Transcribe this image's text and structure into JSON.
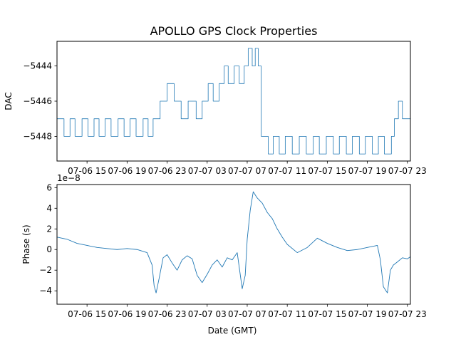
{
  "figure": {
    "title": "APOLLO GPS Clock Properties",
    "xlabel": "Date (GMT)"
  },
  "chart_data": [
    {
      "type": "line",
      "title": "APOLLO GPS Clock Properties",
      "xlabel": "",
      "ylabel": "DAC",
      "x_unit": "hours since 07-06 12:00 GMT",
      "xlim": [
        0.0,
        35.3
      ],
      "ylim": [
        -5449.4,
        -5442.6
      ],
      "yticks": [
        -5448,
        -5446,
        -5444
      ],
      "ytick_labels": [
        "−5448",
        "−5446",
        "−5444"
      ],
      "xticks": [
        3,
        7,
        11,
        15,
        19,
        23,
        27,
        31,
        35
      ],
      "xtick_labels": [
        "07-06 15",
        "07-06 19",
        "07-06 23",
        "07-07 03",
        "07-07 07",
        "07-07 11",
        "07-07 15",
        "07-07 19",
        "07-07 23"
      ],
      "color": "#1f77b4",
      "grid": false,
      "series": [
        {
          "x": [
            0.0,
            0.6,
            0.7,
            1.2,
            1.3,
            1.7,
            1.8,
            2.4,
            2.5,
            3.0,
            3.1,
            3.6,
            3.7,
            4.1,
            4.2,
            4.7,
            4.8,
            5.3,
            5.4,
            6.0,
            6.1,
            6.6,
            6.7,
            7.2,
            7.3,
            7.8,
            7.9,
            8.5,
            8.6,
            9.0,
            9.1,
            9.5,
            9.6,
            10.2,
            10.3,
            10.9,
            11.0,
            11.6,
            11.7,
            12.3,
            12.4,
            13.0,
            13.1,
            13.8,
            13.9,
            14.4,
            14.5,
            15.0,
            15.1,
            15.5,
            15.6,
            16.1,
            16.2,
            16.6,
            16.7,
            17.0,
            17.1,
            17.6,
            17.7,
            18.1,
            18.2,
            18.6,
            18.7,
            19.0,
            19.1,
            19.4,
            19.5,
            19.7,
            19.8,
            20.0,
            20.1,
            20.3,
            20.4,
            21.0,
            21.1,
            21.5,
            21.6,
            22.1,
            22.2,
            22.7,
            22.8,
            23.4,
            23.5,
            24.1,
            24.2,
            24.8,
            24.9,
            25.5,
            25.6,
            26.1,
            26.2,
            26.8,
            26.9,
            27.5,
            27.6,
            28.1,
            28.2,
            28.8,
            28.9,
            29.4,
            29.5,
            30.1,
            30.2,
            30.7,
            30.8,
            31.4,
            31.5,
            32.0,
            32.1,
            32.6,
            32.7,
            33.3,
            33.4,
            33.6,
            33.7,
            34.0,
            34.1,
            34.4,
            34.5,
            35.3
          ],
          "y": [
            -5447,
            -5447,
            -5448,
            -5448,
            -5447,
            -5447,
            -5448,
            -5448,
            -5447,
            -5447,
            -5448,
            -5448,
            -5447,
            -5447,
            -5448,
            -5448,
            -5447,
            -5447,
            -5448,
            -5448,
            -5447,
            -5447,
            -5448,
            -5448,
            -5447,
            -5447,
            -5448,
            -5448,
            -5447,
            -5447,
            -5448,
            -5448,
            -5447,
            -5447,
            -5446,
            -5446,
            -5445,
            -5445,
            -5446,
            -5446,
            -5447,
            -5447,
            -5446,
            -5446,
            -5447,
            -5447,
            -5446,
            -5446,
            -5445,
            -5445,
            -5446,
            -5446,
            -5445,
            -5445,
            -5444,
            -5444,
            -5445,
            -5445,
            -5444,
            -5444,
            -5445,
            -5445,
            -5444,
            -5444,
            -5443,
            -5443,
            -5444,
            -5444,
            -5443,
            -5443,
            -5444,
            -5444,
            -5448,
            -5448,
            -5449,
            -5449,
            -5448,
            -5448,
            -5449,
            -5449,
            -5448,
            -5448,
            -5449,
            -5449,
            -5448,
            -5448,
            -5449,
            -5449,
            -5448,
            -5448,
            -5449,
            -5449,
            -5448,
            -5448,
            -5449,
            -5449,
            -5448,
            -5448,
            -5449,
            -5449,
            -5448,
            -5448,
            -5449,
            -5449,
            -5448,
            -5448,
            -5449,
            -5449,
            -5448,
            -5448,
            -5449,
            -5449,
            -5448,
            -5448,
            -5447,
            -5447,
            -5446,
            -5446,
            -5447,
            -5447
          ]
        }
      ]
    },
    {
      "type": "line",
      "title": "",
      "xlabel": "Date (GMT)",
      "ylabel": "Phase (s)",
      "scale_label": "1e−8",
      "x_unit": "hours since 07-06 12:00 GMT",
      "xlim": [
        0.0,
        35.3
      ],
      "ylim": [
        -5.3,
        6.3
      ],
      "yticks": [
        -4,
        -2,
        0,
        2,
        4,
        6
      ],
      "ytick_labels": [
        "−4",
        "−2",
        "0",
        "2",
        "4",
        "6"
      ],
      "xticks": [
        3,
        7,
        11,
        15,
        19,
        23,
        27,
        31,
        35
      ],
      "xtick_labels": [
        "07-06 15",
        "07-06 19",
        "07-06 23",
        "07-07 03",
        "07-07 07",
        "07-07 11",
        "07-07 15",
        "07-07 19",
        "07-07 23"
      ],
      "color": "#1f77b4",
      "grid": false,
      "series": [
        {
          "x": [
            0.0,
            1.0,
            2.0,
            3.0,
            4.0,
            5.0,
            6.0,
            7.0,
            8.0,
            9.0,
            9.5,
            9.7,
            9.9,
            10.2,
            10.6,
            11.0,
            11.5,
            12.0,
            12.5,
            13.0,
            13.5,
            14.0,
            14.5,
            15.0,
            15.5,
            16.0,
            16.5,
            17.0,
            17.5,
            18.0,
            18.5,
            18.8,
            19.0,
            19.3,
            19.6,
            20.0,
            20.5,
            21.0,
            21.5,
            22.0,
            22.5,
            23.0,
            24.0,
            25.0,
            26.0,
            27.0,
            28.0,
            29.0,
            30.0,
            31.0,
            32.0,
            32.3,
            32.6,
            33.0,
            33.3,
            33.6,
            34.0,
            34.5,
            35.0,
            35.3
          ],
          "y": [
            1.2,
            1.0,
            0.6,
            0.4,
            0.2,
            0.1,
            0.0,
            0.1,
            0.0,
            -0.3,
            -1.5,
            -3.5,
            -4.2,
            -2.8,
            -0.8,
            -0.5,
            -1.3,
            -2.0,
            -1.0,
            -0.6,
            -0.9,
            -2.5,
            -3.2,
            -2.4,
            -1.5,
            -1.0,
            -1.7,
            -0.8,
            -1.0,
            -0.3,
            -3.8,
            -2.5,
            1.0,
            3.8,
            5.6,
            5.0,
            4.5,
            3.6,
            3.0,
            2.0,
            1.2,
            0.5,
            -0.3,
            0.2,
            1.1,
            0.6,
            0.2,
            -0.1,
            0.0,
            0.2,
            0.4,
            -1.0,
            -3.6,
            -4.2,
            -2.0,
            -1.5,
            -1.2,
            -0.8,
            -0.9,
            -0.7
          ]
        }
      ]
    }
  ]
}
